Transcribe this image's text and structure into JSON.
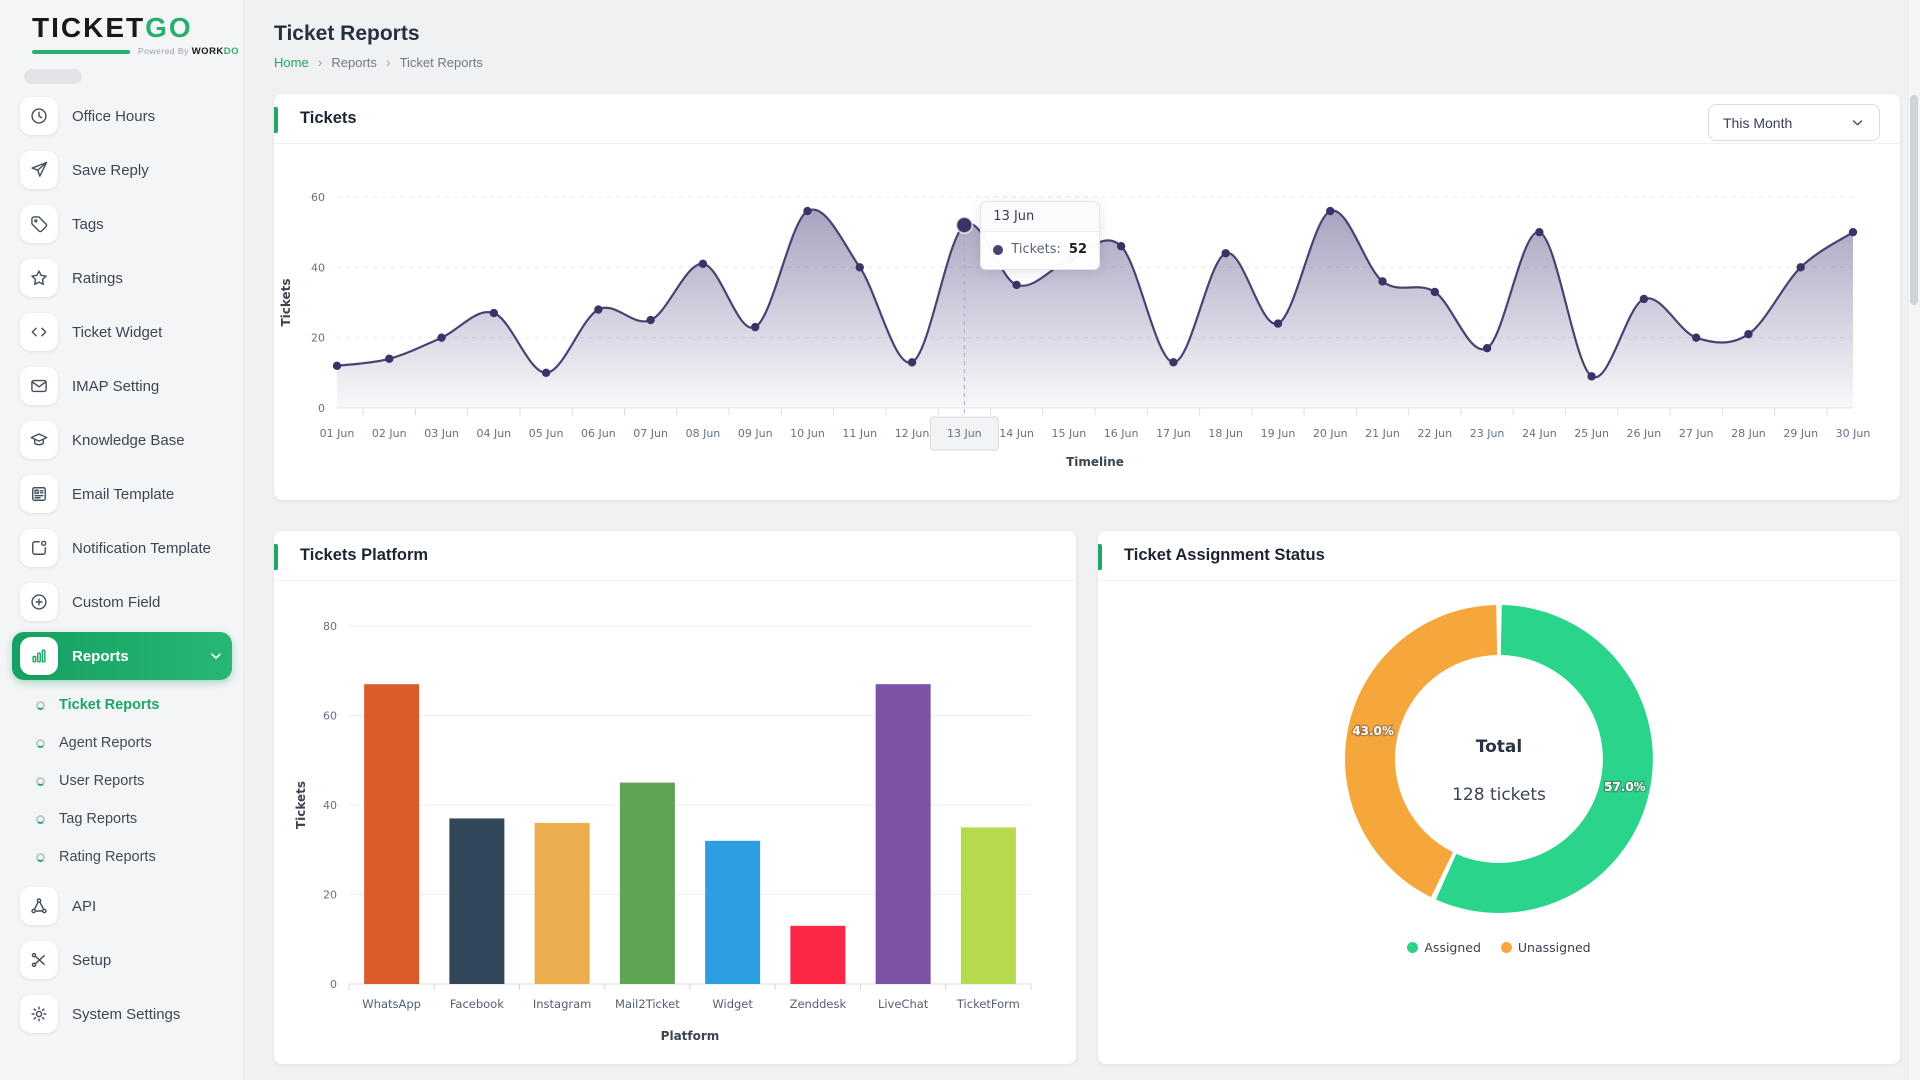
{
  "app": {
    "logo_ticket": "TICKET",
    "logo_go": "GO",
    "powered_by": "Powered By",
    "workdo_work": "WORK",
    "workdo_do": "DO"
  },
  "sidebar": {
    "menu": [
      {
        "label": "Office Hours",
        "icon": "clock-icon"
      },
      {
        "label": "Save Reply",
        "icon": "send-icon"
      },
      {
        "label": "Tags",
        "icon": "tag-icon"
      },
      {
        "label": "Ratings",
        "icon": "star-icon"
      },
      {
        "label": "Ticket Widget",
        "icon": "code-icon"
      },
      {
        "label": "IMAP Setting",
        "icon": "mail-icon"
      },
      {
        "label": "Knowledge Base",
        "icon": "graduation-cap-icon"
      },
      {
        "label": "Email Template",
        "icon": "layout-icon"
      },
      {
        "label": "Notification Template",
        "icon": "notification-icon"
      },
      {
        "label": "Custom Field",
        "icon": "plus-circle-icon"
      },
      {
        "label": "Reports",
        "icon": "bar-chart-icon",
        "active": true,
        "expandable": true
      },
      {
        "label": "Ticket Reports",
        "sub": true,
        "active": true
      },
      {
        "label": "Agent Reports",
        "sub": true
      },
      {
        "label": "User Reports",
        "sub": true
      },
      {
        "label": "Tag Reports",
        "sub": true
      },
      {
        "label": "Rating Reports",
        "sub": true
      },
      {
        "label": "API",
        "icon": "api-icon"
      },
      {
        "label": "Setup",
        "icon": "scissors-icon"
      },
      {
        "label": "System Settings",
        "icon": "gear-icon"
      }
    ]
  },
  "header": {
    "title": "Ticket Reports",
    "breadcrumb": [
      "Home",
      "Reports",
      "Ticket Reports"
    ],
    "breadcrumb_separator": "›"
  },
  "chart_data": [
    {
      "type": "area",
      "title": "Tickets",
      "filter": "This Month",
      "x": [
        "01 Jun",
        "02 Jun",
        "03 Jun",
        "04 Jun",
        "05 Jun",
        "06 Jun",
        "07 Jun",
        "08 Jun",
        "09 Jun",
        "10 Jun",
        "11 Jun",
        "12 Jun",
        "13 Jun",
        "14 Jun",
        "15 Jun",
        "16 Jun",
        "17 Jun",
        "18 Jun",
        "19 Jun",
        "20 Jun",
        "21 Jun",
        "22 Jun",
        "23 Jun",
        "24 Jun",
        "25 Jun",
        "26 Jun",
        "27 Jun",
        "28 Jun",
        "29 Jun",
        "30 Jun"
      ],
      "values": [
        12,
        14,
        20,
        27,
        10,
        28,
        25,
        41,
        23,
        56,
        40,
        13,
        52,
        35,
        42,
        46,
        13,
        44,
        24,
        56,
        36,
        33,
        17,
        50,
        9,
        31,
        20,
        21,
        40,
        50
      ],
      "xlabel": "Timeline",
      "ylabel": "Tickets",
      "ylim": [
        0,
        60
      ],
      "yticks": [
        0,
        20,
        40,
        60
      ],
      "line_color": "#4a4173",
      "dot_color": "#3a3366",
      "fill_color": "#60588c",
      "grid": true,
      "tooltip": {
        "date": "13 Jun",
        "label": "Tickets:",
        "value": 52,
        "index": 12
      }
    },
    {
      "type": "bar",
      "title": "Tickets Platform",
      "categories": [
        "WhatsApp",
        "Facebook",
        "Instagram",
        "Mail2Ticket",
        "Widget",
        "Zenddesk",
        "LiveChat",
        "TicketForm"
      ],
      "values": [
        67,
        37,
        36,
        45,
        32,
        13,
        67,
        35
      ],
      "colors": [
        "#da5c2b",
        "#33475b",
        "#ecae4c",
        "#5fa355",
        "#2e9ee3",
        "#fa2843",
        "#7b53a6",
        "#b6da4d"
      ],
      "xlabel": "Platform",
      "ylabel": "Tickets",
      "ylim": [
        0,
        80
      ],
      "yticks": [
        0,
        20,
        40,
        60,
        80
      ],
      "grid": true
    },
    {
      "type": "pie",
      "title": "Ticket Assignment Status",
      "labels": [
        "Assigned",
        "Unassigned"
      ],
      "values": [
        57.0,
        43.0
      ],
      "value_labels": [
        "57.0%",
        "43.0%"
      ],
      "colors": [
        "#2bd48b",
        "#f6a73b"
      ],
      "center": {
        "title": "Total",
        "subtitle": "128 tickets"
      },
      "legend_position": "bottom"
    }
  ]
}
